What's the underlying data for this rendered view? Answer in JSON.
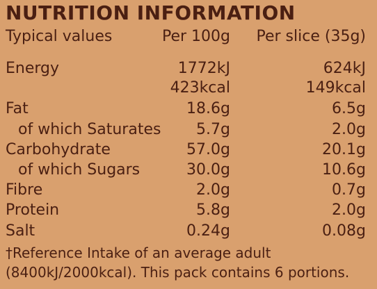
{
  "title": "NUTRITION INFORMATION",
  "header": {
    "label": "Typical values",
    "per_100g": "Per 100g",
    "per_slice": "Per slice (35g)"
  },
  "rows": [
    {
      "name": "Energy",
      "per_100g": "1772kJ",
      "per_slice": "624kJ"
    },
    {
      "name": "",
      "per_100g": "423kcal",
      "per_slice": "149kcal"
    },
    {
      "name": "Fat",
      "per_100g": "18.6g",
      "per_slice": "6.5g"
    },
    {
      "name": "of which Saturates",
      "per_100g": "5.7g",
      "per_slice": "2.0g"
    },
    {
      "name": "Carbohydrate",
      "per_100g": "57.0g",
      "per_slice": "20.1g"
    },
    {
      "name": "of which Sugars",
      "per_100g": "30.0g",
      "per_slice": "10.6g"
    },
    {
      "name": "Fibre",
      "per_100g": "2.0g",
      "per_slice": "0.7g"
    },
    {
      "name": "Protein",
      "per_100g": "5.8g",
      "per_slice": "2.0g"
    },
    {
      "name": "Salt",
      "per_100g": "0.24g",
      "per_slice": "0.08g"
    }
  ],
  "footnote": {
    "line1": "†Reference Intake of an average adult",
    "line2": "(8400kJ/2000kcal). This pack contains 6 portions."
  },
  "colors": {
    "background": "#d9a06e",
    "text": "#4a1f12"
  }
}
